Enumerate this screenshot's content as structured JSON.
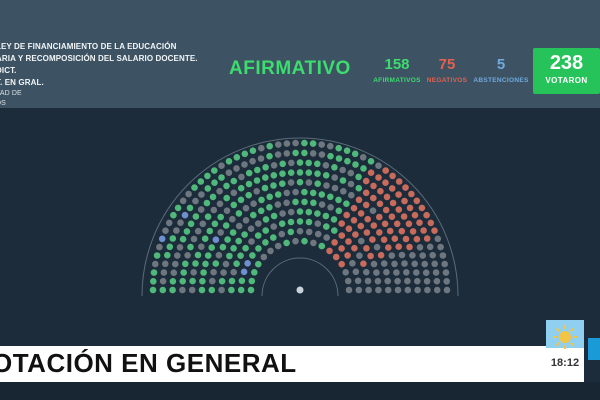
{
  "header": {
    "bill_title_lines": [
      "LEY DE FINANCIAMIENTO DE LA EDUCACIÓN",
      "ARIA Y RECOMPOSICIÓN DEL SALARIO DOCENTE. DICT.",
      "T. EN GRAL.",
      "TAD DE",
      "DS"
    ],
    "result_word": "AFIRMATIVO",
    "stats": {
      "affirmative": {
        "value": "158",
        "label": "AFIRMATIVOS"
      },
      "negative": {
        "value": "75",
        "label": "NEGATIVOS"
      },
      "abstentions": {
        "value": "5",
        "label": "ABSTENCIONES"
      }
    },
    "voted": {
      "value": "238",
      "label": "VOTARON"
    }
  },
  "chamber": {
    "seat_counts": {
      "affirmative": 158,
      "negative": 75,
      "abstentions": 5
    },
    "colors": {
      "affirmative": "#4fb87a",
      "negative": "#c86a5c",
      "abstention": "#6f8fd0",
      "empty": "#6e7780",
      "outline": "#5a6b7a"
    }
  },
  "banner": {
    "text": "OTACIÓN EN GENERAL"
  },
  "clock": {
    "time": "18:12",
    "icon": "sun-icon"
  },
  "colors": {
    "header_bg": "#3d5363",
    "page_bg": "#1c2c3a",
    "accent_green": "#3ddc6e",
    "negative_red": "#e2614f",
    "abstention_blue": "#6fa9e0",
    "voted_box": "#26c35b"
  }
}
